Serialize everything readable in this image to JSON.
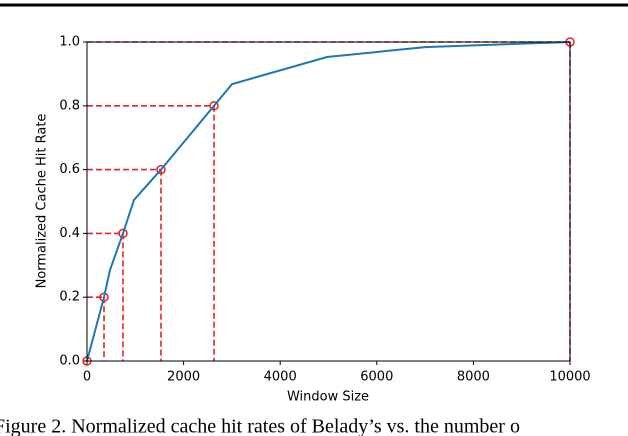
{
  "chart_data": {
    "type": "line",
    "xlabel": "Window Size",
    "ylabel": "Normalized Cache Hit Rate",
    "caption": "Figure 2. Normalized cache hit rates of Belady’s vs. the number o",
    "xlim": [
      0,
      10000
    ],
    "ylim": [
      0,
      1
    ],
    "xticks": [
      0,
      2000,
      4000,
      6000,
      8000,
      10000
    ],
    "yticks": [
      {
        "value": 0,
        "label": "0.0"
      },
      0.2,
      0.4,
      0.6,
      0.8,
      {
        "value": 1,
        "label": "1.0"
      }
    ],
    "series": [
      {
        "type": "line",
        "color": "#1f77b4",
        "x": [
          0,
          352,
          476,
          745,
          973,
          1532,
          2630,
          3002,
          4969,
          6998,
          10000
        ],
        "values": [
          0,
          0.2,
          0.285,
          0.4,
          0.505,
          0.6,
          0.8,
          0.868,
          0.953,
          0.984,
          1.0
        ]
      },
      {
        "type": "scatter",
        "color": "#e8221f",
        "guides": "dashed",
        "x": [
          0,
          352,
          745,
          1532,
          2630,
          10000
        ],
        "values": [
          0,
          0.2,
          0.4,
          0.6,
          0.8,
          1.0
        ]
      }
    ]
  }
}
